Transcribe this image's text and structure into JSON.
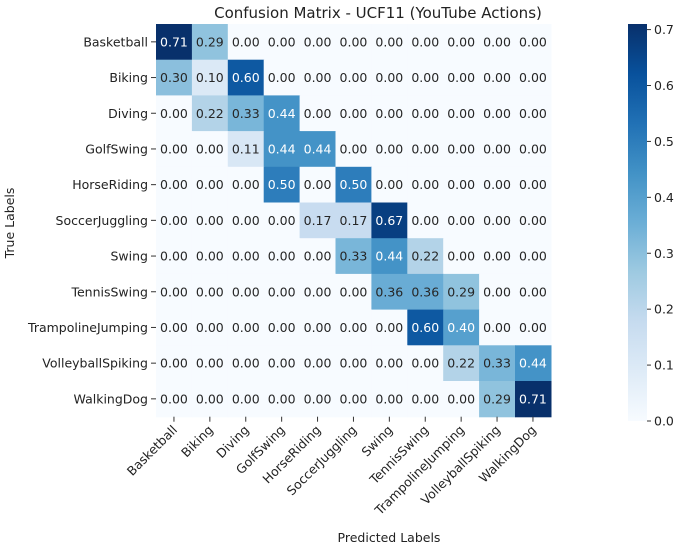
{
  "chart_data": {
    "type": "heatmap",
    "title": "Confusion Matrix - UCF11 (YouTube Actions)",
    "xlabel": "Predicted Labels",
    "ylabel": "True Labels",
    "rows": [
      "Basketball",
      "Biking",
      "Diving",
      "GolfSwing",
      "HorseRiding",
      "SoccerJuggling",
      "Swing",
      "TennisSwing",
      "TrampolineJumping",
      "VolleyballSpiking",
      "WalkingDog"
    ],
    "columns": [
      "Basketball",
      "Biking",
      "Diving",
      "GolfSwing",
      "HorseRiding",
      "SoccerJuggling",
      "Swing",
      "TennisSwing",
      "TrampolineJumping",
      "VolleyballSpiking",
      "WalkingDog"
    ],
    "values": [
      [
        0.71,
        0.29,
        0.0,
        0.0,
        0.0,
        0.0,
        0.0,
        0.0,
        0.0,
        0.0,
        0.0
      ],
      [
        0.3,
        0.1,
        0.6,
        0.0,
        0.0,
        0.0,
        0.0,
        0.0,
        0.0,
        0.0,
        0.0
      ],
      [
        0.0,
        0.22,
        0.33,
        0.44,
        0.0,
        0.0,
        0.0,
        0.0,
        0.0,
        0.0,
        0.0
      ],
      [
        0.0,
        0.0,
        0.11,
        0.44,
        0.44,
        0.0,
        0.0,
        0.0,
        0.0,
        0.0,
        0.0
      ],
      [
        0.0,
        0.0,
        0.0,
        0.5,
        0.0,
        0.5,
        0.0,
        0.0,
        0.0,
        0.0,
        0.0
      ],
      [
        0.0,
        0.0,
        0.0,
        0.0,
        0.17,
        0.17,
        0.67,
        0.0,
        0.0,
        0.0,
        0.0
      ],
      [
        0.0,
        0.0,
        0.0,
        0.0,
        0.0,
        0.33,
        0.44,
        0.22,
        0.0,
        0.0,
        0.0
      ],
      [
        0.0,
        0.0,
        0.0,
        0.0,
        0.0,
        0.0,
        0.36,
        0.36,
        0.29,
        0.0,
        0.0
      ],
      [
        0.0,
        0.0,
        0.0,
        0.0,
        0.0,
        0.0,
        0.0,
        0.6,
        0.4,
        0.0,
        0.0
      ],
      [
        0.0,
        0.0,
        0.0,
        0.0,
        0.0,
        0.0,
        0.0,
        0.0,
        0.22,
        0.33,
        0.44
      ],
      [
        0.0,
        0.0,
        0.0,
        0.0,
        0.0,
        0.0,
        0.0,
        0.0,
        0.0,
        0.29,
        0.71
      ]
    ],
    "value_format": "2 decimals",
    "colormap": "Blues",
    "colors": {
      "low": "#f7fbff",
      "high": "#08306b"
    },
    "vmin": 0.0,
    "vmax": 0.71,
    "colorbar_ticks": [
      "0.0",
      "0.1",
      "0.2",
      "0.3",
      "0.4",
      "0.5",
      "0.6",
      "0.7"
    ],
    "legend_placement": "right (colorbar)",
    "grid": false
  }
}
